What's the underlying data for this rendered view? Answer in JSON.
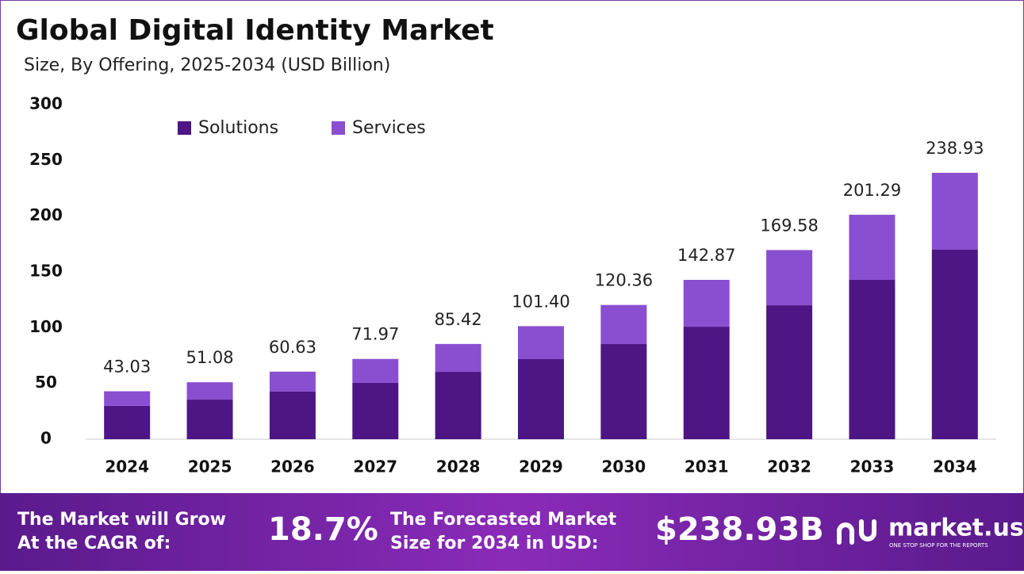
{
  "chart_data": {
    "type": "stacked-bar",
    "title": "Global Digital Identity Market",
    "subtitle": "Size, By Offering, 2025-2034 (USD Billion)",
    "categories": [
      "2024",
      "2025",
      "2026",
      "2027",
      "2028",
      "2029",
      "2030",
      "2031",
      "2032",
      "2033",
      "2034"
    ],
    "series": [
      {
        "name": "Solutions",
        "color": "#4d1684",
        "values": [
          30.0,
          35.5,
          42.7,
          50.5,
          60.4,
          71.8,
          85.3,
          100.9,
          120.1,
          142.9,
          169.9
        ]
      },
      {
        "name": "Services",
        "color": "#8a4fd0",
        "values": [
          13.0,
          15.6,
          17.9,
          21.5,
          25.0,
          29.6,
          35.1,
          42.0,
          49.5,
          58.4,
          69.0
        ]
      }
    ],
    "total_labels": [
      "43.03",
      "51.08",
      "60.63",
      "71.97",
      "85.42",
      "101.40",
      "120.36",
      "142.87",
      "169.58",
      "201.29",
      "238.93"
    ],
    "ylim": [
      0,
      300
    ],
    "yticks": [
      0,
      50,
      100,
      150,
      200,
      250,
      300
    ],
    "grid": false
  },
  "footer": {
    "cagr_text": [
      "The Market will Grow",
      "At the CAGR of:"
    ],
    "cagr_value": "18.7%",
    "forecast_text": [
      "The Forecasted Market",
      "Size for 2034 in USD:"
    ],
    "forecast_value": "$238.93B",
    "brand": "market.us",
    "tagline": "ONE STOP SHOP FOR THE REPORTS"
  }
}
